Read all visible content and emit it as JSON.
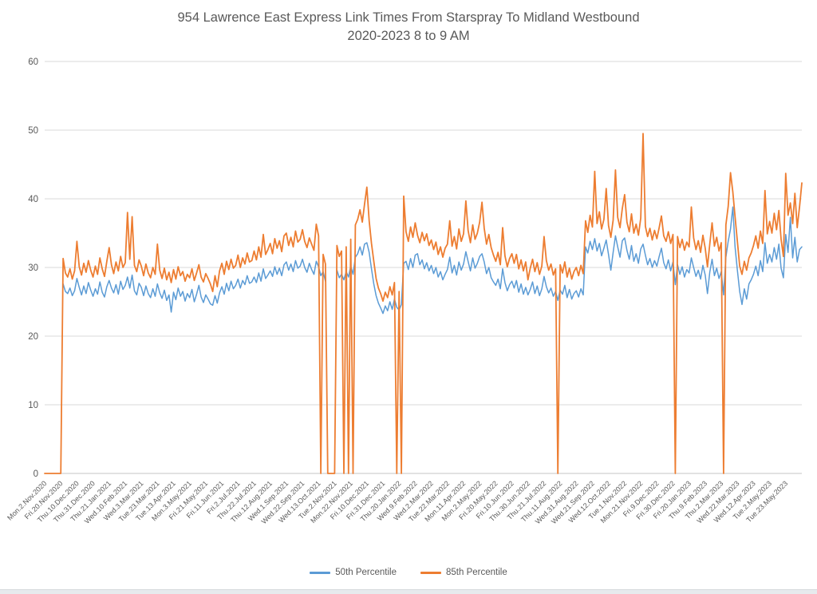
{
  "colors": {
    "title_text": "#595959",
    "axis_text": "#595959",
    "gridline": "#D9D9D9",
    "axis_line": "#C6C6C6"
  },
  "chart_data": {
    "type": "line",
    "title": "954 Lawrence East Express Link Times From Starspray To Midland Westbound",
    "subtitle": "2020-2023 8 to 9 AM",
    "xlabel": "",
    "ylabel": "",
    "ylim": [
      0,
      60
    ],
    "y_tick_step": 10,
    "y_tick_labels": [
      "0",
      "10",
      "20",
      "30",
      "40",
      "50",
      "60"
    ],
    "grid": true,
    "legend_position": "bottom",
    "x_tick_interval": 7,
    "x_tick_labels": [
      "Mon.2.Nov.2020",
      "Fri.20.Nov.2020",
      "Thu.10.Dec.2020",
      "Thu.31.Dec.2020",
      "Thu.21.Jan.2021",
      "Wed.10.Feb.2021",
      "Wed.3.Mar.2021",
      "Tue.23.Mar.2021",
      "Tue.13.Apr.2021",
      "Mon.3.May.2021",
      "Fri.21.May.2021",
      "Fri.11.Jun.2021",
      "Fri.2.Jul.2021",
      "Thu.22.Jul.2021",
      "Thu.12.Aug.2021",
      "Wed.1.Sep.2021",
      "Wed.22.Sep.2021",
      "Wed.13.Oct.2021",
      "Tue.2.Nov.2021",
      "Mon.22.Nov.2021",
      "Fri.10.Dec.2021",
      "Fri.31.Dec.2021",
      "Thu.20.Jan.2022",
      "Wed.9.Feb.2022",
      "Wed.2.Mar.2022",
      "Tue.22.Mar.2022",
      "Mon.11.Apr.2022",
      "Mon.2.May.2022",
      "Fri.20.May.2022",
      "Fri.10.Jun.2022",
      "Thu.30.Jun.2022",
      "Thu.21.Jul.2022",
      "Thu.11.Aug.2022",
      "Wed.31.Aug.2022",
      "Wed.21.Sep.2022",
      "Wed.12.Oct.2022",
      "Tue.1.Nov.2022",
      "Mon.21.Nov.2022",
      "Fri.9.Dec.2022",
      "Fri.30.Dec.2022",
      "Fri.20.Jan.2023",
      "Thu.9.Feb.2023",
      "Thu.2.Mar.2023",
      "Wed.22.Mar.2023",
      "Wed.12.Apr.2023",
      "Tue.2.May.2023",
      "Tue.23.May.2023"
    ],
    "series": [
      {
        "name": "50th Percentile",
        "color": "#5B9BD5",
        "values": [
          null,
          null,
          null,
          null,
          null,
          null,
          null,
          null,
          27.6,
          26.5,
          26.2,
          27.0,
          25.9,
          26.6,
          28.4,
          27.1,
          26.0,
          27.3,
          26.2,
          27.8,
          26.7,
          25.8,
          26.9,
          26.1,
          27.9,
          26.4,
          25.7,
          27.2,
          28.1,
          27.0,
          26.3,
          27.5,
          26.1,
          28.0,
          26.8,
          27.4,
          28.6,
          27.0,
          28.9,
          26.6,
          26.0,
          27.7,
          27.1,
          25.9,
          27.3,
          26.2,
          25.6,
          26.9,
          25.8,
          27.6,
          26.3,
          25.5,
          26.7,
          25.2,
          26.0,
          23.5,
          26.4,
          25.3,
          27.0,
          25.8,
          26.5,
          25.1,
          26.2,
          25.6,
          26.8,
          25.0,
          26.1,
          27.4,
          25.7,
          24.9,
          26.0,
          25.4,
          24.7,
          24.5,
          25.9,
          24.8,
          26.3,
          27.2,
          26.1,
          27.7,
          26.6,
          28.0,
          26.9,
          27.4,
          28.3,
          27.0,
          28.1,
          27.5,
          28.8,
          27.7,
          27.9,
          28.6,
          27.8,
          29.2,
          28.0,
          29.8,
          28.4,
          28.9,
          29.5,
          28.7,
          30.1,
          29.0,
          29.9,
          28.8,
          30.4,
          30.8,
          29.6,
          30.5,
          29.4,
          31.0,
          29.9,
          30.2,
          31.2,
          30.0,
          29.3,
          30.6,
          29.7,
          29.0,
          30.9,
          30.1,
          28.8,
          29.4,
          28.0,
          null,
          null,
          null,
          null,
          29.6,
          28.5,
          29.0,
          28.2,
          29.4,
          28.6,
          30.2,
          29.0,
          31.5,
          32.0,
          33.0,
          31.8,
          33.4,
          33.6,
          32.2,
          29.8,
          27.6,
          25.9,
          24.8,
          24.1,
          23.3,
          24.4,
          23.7,
          25.0,
          23.9,
          25.4,
          24.2,
          23.8,
          24.6,
          30.6,
          30.9,
          29.7,
          31.3,
          30.0,
          31.8,
          32.0,
          30.4,
          31.1,
          29.8,
          30.7,
          29.5,
          30.3,
          29.1,
          30.0,
          28.6,
          29.4,
          28.2,
          29.0,
          29.7,
          31.5,
          29.2,
          30.3,
          28.9,
          30.8,
          29.6,
          30.5,
          32.3,
          30.9,
          29.5,
          31.4,
          29.9,
          30.6,
          31.6,
          32.0,
          30.8,
          29.1,
          30.0,
          28.5,
          27.9,
          27.4,
          28.3,
          26.9,
          29.8,
          27.8,
          26.6,
          27.5,
          28.0,
          27.0,
          28.1,
          26.4,
          27.6,
          26.1,
          27.1,
          26.0,
          26.8,
          27.9,
          26.2,
          27.3,
          25.9,
          26.9,
          28.7,
          27.2,
          26.3,
          27.0,
          25.8,
          26.5,
          25.2,
          26.7,
          26.1,
          27.4,
          25.6,
          26.8,
          25.4,
          26.2,
          26.6,
          25.7,
          26.9,
          26.0,
          33.0,
          32.1,
          33.8,
          32.6,
          34.2,
          32.4,
          33.5,
          31.7,
          32.8,
          34.0,
          31.9,
          29.6,
          32.2,
          34.6,
          33.0,
          31.5,
          33.9,
          34.3,
          32.5,
          31.2,
          33.2,
          30.9,
          32.0,
          30.6,
          32.7,
          33.4,
          31.8,
          30.4,
          31.3,
          30.0,
          31.0,
          30.2,
          31.6,
          32.8,
          30.7,
          29.8,
          31.1,
          29.5,
          30.8,
          27.5,
          30.4,
          29.0,
          30.1,
          28.6,
          29.7,
          29.2,
          31.4,
          30.0,
          28.7,
          29.6,
          28.3,
          30.3,
          28.9,
          26.2,
          29.3,
          31.2,
          28.8,
          29.9,
          28.4,
          29.4,
          26.0,
          31.5,
          33.8,
          35.6,
          38.8,
          33.0,
          29.6,
          26.5,
          24.6,
          26.9,
          25.4,
          27.6,
          28.2,
          29.0,
          30.2,
          28.8,
          31.0,
          29.4,
          33.6,
          30.6,
          31.9,
          30.8,
          32.9,
          31.2,
          33.4,
          29.9,
          28.5,
          34.8,
          32.2,
          37.3,
          31.4,
          34.4,
          30.8,
          32.6,
          33.0
        ]
      },
      {
        "name": "85th Percentile",
        "color": "#ED7D31",
        "values": [
          0,
          0,
          0,
          0,
          0,
          0,
          0,
          0,
          31.3,
          29.2,
          28.6,
          29.8,
          28.3,
          29.5,
          33.8,
          30.1,
          28.9,
          30.6,
          29.3,
          31.0,
          29.6,
          28.6,
          30.2,
          29.0,
          31.4,
          29.8,
          28.7,
          30.9,
          32.9,
          30.4,
          29.1,
          30.8,
          29.5,
          31.6,
          30.0,
          30.7,
          38.0,
          31.2,
          37.4,
          30.3,
          29.4,
          31.1,
          30.2,
          28.8,
          30.5,
          29.2,
          28.5,
          30.0,
          29.0,
          33.4,
          29.6,
          28.4,
          29.9,
          28.2,
          29.3,
          27.8,
          29.7,
          28.3,
          30.1,
          28.8,
          29.4,
          28.0,
          29.0,
          28.5,
          29.8,
          28.1,
          29.2,
          30.4,
          28.6,
          27.9,
          29.1,
          28.4,
          27.6,
          26.5,
          28.8,
          27.2,
          29.5,
          30.6,
          29.0,
          30.9,
          29.7,
          31.2,
          29.9,
          30.3,
          31.8,
          30.0,
          31.4,
          30.5,
          32.1,
          30.8,
          31.0,
          32.4,
          31.1,
          33.0,
          31.5,
          34.8,
          31.9,
          32.6,
          33.5,
          32.0,
          34.2,
          32.8,
          33.9,
          32.3,
          34.6,
          35.0,
          33.2,
          34.4,
          33.0,
          35.3,
          33.7,
          34.1,
          35.5,
          33.8,
          32.9,
          34.3,
          33.4,
          32.5,
          36.3,
          34.6,
          0,
          31.9,
          30.5,
          0,
          0,
          0,
          0,
          33.2,
          31.6,
          32.4,
          0,
          33.0,
          0,
          34.1,
          0,
          36.2,
          37.0,
          38.4,
          36.6,
          39.2,
          41.7,
          36.8,
          33.5,
          30.9,
          28.4,
          27.0,
          26.2,
          25.1,
          26.4,
          25.6,
          27.2,
          26.0,
          27.8,
          0,
          26.5,
          0,
          40.4,
          35.2,
          33.8,
          35.9,
          34.4,
          36.5,
          34.7,
          33.6,
          35.1,
          33.9,
          34.9,
          33.2,
          34.0,
          32.6,
          33.7,
          31.9,
          33.0,
          31.5,
          32.8,
          33.4,
          36.8,
          33.1,
          34.5,
          32.7,
          35.6,
          33.8,
          34.9,
          39.7,
          35.4,
          33.6,
          36.2,
          34.1,
          35.0,
          36.6,
          39.5,
          35.7,
          33.4,
          34.8,
          32.9,
          31.8,
          30.9,
          32.2,
          30.4,
          35.8,
          31.7,
          30.1,
          31.3,
          32.0,
          30.6,
          31.9,
          29.8,
          31.1,
          29.5,
          30.8,
          28.2,
          29.9,
          31.2,
          29.4,
          30.7,
          29.0,
          30.2,
          34.5,
          31.0,
          29.6,
          30.5,
          28.9,
          29.8,
          0,
          30.4,
          29.2,
          30.8,
          28.6,
          29.9,
          28.3,
          29.4,
          30.0,
          28.8,
          30.3,
          29.1,
          36.8,
          35.1,
          37.6,
          35.9,
          44.0,
          36.4,
          38.1,
          35.6,
          37.0,
          41.5,
          36.1,
          34.4,
          36.9,
          44.2,
          37.3,
          35.8,
          38.6,
          40.6,
          36.6,
          35.2,
          37.8,
          35.0,
          36.3,
          34.7,
          37.2,
          49.5,
          36.0,
          34.5,
          35.7,
          34.0,
          35.4,
          34.2,
          35.8,
          37.5,
          34.6,
          33.8,
          35.2,
          33.5,
          34.8,
          0,
          34.5,
          32.9,
          34.1,
          32.5,
          33.7,
          33.0,
          38.8,
          34.3,
          32.6,
          33.9,
          32.2,
          34.7,
          32.8,
          30.1,
          33.4,
          36.5,
          33.1,
          34.4,
          32.4,
          33.6,
          0,
          36.2,
          38.9,
          43.8,
          41.0,
          37.4,
          33.8,
          30.2,
          29.0,
          30.9,
          29.6,
          31.4,
          32.1,
          33.2,
          34.6,
          32.8,
          35.3,
          33.5,
          41.2,
          34.9,
          36.7,
          35.0,
          37.9,
          35.5,
          38.3,
          34.1,
          31.6,
          43.7,
          37.6,
          39.4,
          36.4,
          40.8,
          35.8,
          38.8,
          42.3
        ]
      }
    ]
  }
}
